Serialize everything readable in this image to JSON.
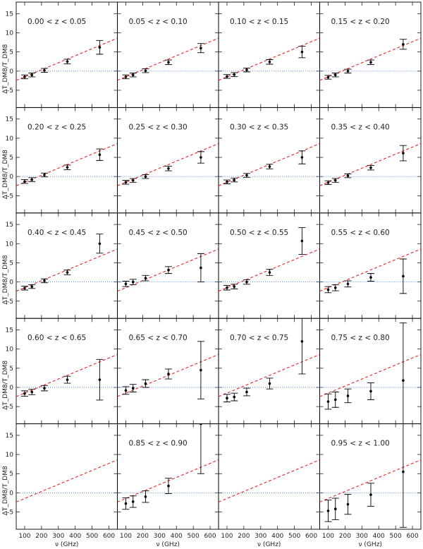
{
  "figure": {
    "ylabel": "ΔT_DM8/T_DM8",
    "xlabel": "ν (GHz)"
  },
  "chart_data": {
    "type": "scatter",
    "grid_layout": {
      "rows": 5,
      "cols": 4
    },
    "xlim": [
      50,
      650
    ],
    "ylim": [
      -9.5,
      18
    ],
    "xticks": [
      100,
      200,
      300,
      400,
      500,
      600
    ],
    "yticks": [
      -5,
      0,
      5,
      10,
      15
    ],
    "x": [
      100,
      143,
      217,
      353,
      545
    ],
    "xlabel": "ν (GHz)",
    "ylabel": "ΔT_DM8/T_DM8",
    "model_line": {
      "style": "dashed",
      "color": "#e8261e",
      "x": [
        50,
        650
      ],
      "y": [
        -2.4,
        8.6
      ]
    },
    "zero_line": {
      "style": "dotted",
      "color": "#3a7fd5",
      "y": 0
    },
    "panels": [
      {
        "title": "0.00 < z < 0.05",
        "values": [
          -1.5,
          -1.0,
          0.2,
          2.5,
          6.2
        ],
        "errors": [
          0.5,
          0.5,
          0.5,
          0.6,
          1.8
        ]
      },
      {
        "title": "0.05 < z < 0.10",
        "values": [
          -1.5,
          -1.0,
          0.1,
          2.3,
          6.0
        ],
        "errors": [
          0.5,
          0.5,
          0.5,
          0.6,
          1.2
        ]
      },
      {
        "title": "0.10 < z < 0.15",
        "values": [
          -1.4,
          -0.9,
          0.3,
          2.4,
          5.0
        ],
        "errors": [
          0.5,
          0.5,
          0.5,
          0.6,
          1.5
        ]
      },
      {
        "title": "0.15 < z < 0.20",
        "values": [
          -1.6,
          -1.0,
          0.0,
          2.3,
          7.0
        ],
        "errors": [
          0.5,
          0.5,
          0.5,
          0.6,
          1.3
        ]
      },
      {
        "title": "0.20 < z < 0.25",
        "values": [
          -1.3,
          -0.8,
          0.4,
          2.4,
          5.7
        ],
        "errors": [
          0.5,
          0.5,
          0.5,
          0.6,
          1.5
        ]
      },
      {
        "title": "0.25 < z < 0.30",
        "values": [
          -1.5,
          -1.0,
          0.0,
          2.1,
          5.0
        ],
        "errors": [
          0.5,
          0.5,
          0.5,
          0.6,
          1.5
        ]
      },
      {
        "title": "0.30 < z < 0.35",
        "values": [
          -1.4,
          -0.9,
          0.3,
          2.6,
          5.0
        ],
        "errors": [
          0.5,
          0.5,
          0.5,
          0.6,
          1.7
        ]
      },
      {
        "title": "0.35 < z < 0.40",
        "values": [
          -1.6,
          -1.0,
          0.2,
          2.3,
          6.1
        ],
        "errors": [
          0.5,
          0.5,
          0.5,
          0.6,
          2.0
        ]
      },
      {
        "title": "0.40 < z < 0.45",
        "values": [
          -1.6,
          -1.2,
          0.3,
          2.5,
          10.0
        ],
        "errors": [
          0.5,
          0.5,
          0.5,
          0.6,
          2.5
        ]
      },
      {
        "title": "0.45 < z < 0.50",
        "values": [
          -0.5,
          0.0,
          1.0,
          3.1,
          3.7
        ],
        "errors": [
          0.7,
          0.7,
          0.7,
          0.9,
          3.7
        ]
      },
      {
        "title": "0.50 < z < 0.55",
        "values": [
          -1.5,
          -1.2,
          0.0,
          2.5,
          10.7
        ],
        "errors": [
          0.6,
          0.6,
          0.6,
          0.8,
          3.5
        ]
      },
      {
        "title": "0.55 < z < 0.60",
        "values": [
          -2.0,
          -1.5,
          -0.5,
          1.2,
          1.5
        ],
        "errors": [
          0.8,
          0.8,
          0.8,
          1.0,
          4.5
        ]
      },
      {
        "title": "0.60 < z < 0.65",
        "values": [
          -1.6,
          -1.2,
          -0.2,
          2.0,
          2.0
        ],
        "errors": [
          0.7,
          0.7,
          0.7,
          0.9,
          5.3
        ]
      },
      {
        "title": "0.65 < z < 0.70",
        "values": [
          -0.8,
          -0.2,
          1.0,
          3.5,
          4.5
        ],
        "errors": [
          1.0,
          1.0,
          1.0,
          1.3,
          7.5
        ]
      },
      {
        "title": "0.70 < z < 0.75",
        "values": [
          -2.8,
          -2.5,
          -1.2,
          1.0,
          12.0
        ],
        "errors": [
          1.0,
          1.0,
          1.0,
          1.4,
          8.5
        ]
      },
      {
        "title": "0.75 < z < 0.80",
        "values": [
          -3.7,
          -3.2,
          -2.2,
          -1.0,
          1.8
        ],
        "errors": [
          2.0,
          2.0,
          1.8,
          2.2,
          15.0
        ]
      },
      {
        "title": "",
        "values": [],
        "errors": []
      },
      {
        "title": "0.85 < z < 0.90",
        "values": [
          -2.8,
          -2.3,
          -1.0,
          1.8,
          18.0
        ],
        "errors": [
          1.5,
          1.5,
          1.5,
          2.0,
          13.0
        ]
      },
      {
        "title": "",
        "values": [],
        "errors": []
      },
      {
        "title": "0.95 < z < 1.00",
        "values": [
          -4.7,
          -4.2,
          -3.0,
          -0.5,
          5.5
        ],
        "errors": [
          2.8,
          2.8,
          2.6,
          3.0,
          14.5
        ]
      }
    ]
  }
}
